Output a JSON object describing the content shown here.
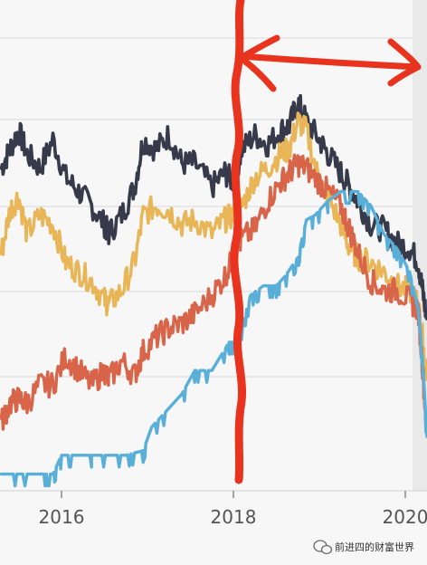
{
  "chart_data": {
    "type": "line",
    "title": "",
    "xlabel": "",
    "ylabel": "",
    "x_tick_labels": [
      "2016",
      "2018",
      "2020"
    ],
    "x_range": [
      2015.3,
      2020.25
    ],
    "y_range": [
      0,
      100
    ],
    "grid": "horizontal",
    "series": [
      {
        "color": "#363a4a",
        "points": [
          [
            2015.3,
            72
          ],
          [
            2015.4,
            76
          ],
          [
            2015.5,
            80
          ],
          [
            2015.6,
            75
          ],
          [
            2015.75,
            72
          ],
          [
            2015.9,
            78
          ],
          [
            2016.05,
            70
          ],
          [
            2016.2,
            67
          ],
          [
            2016.35,
            64
          ],
          [
            2016.5,
            60
          ],
          [
            2016.55,
            58
          ],
          [
            2016.7,
            62
          ],
          [
            2016.85,
            68
          ],
          [
            2016.95,
            78
          ],
          [
            2017.1,
            76
          ],
          [
            2017.25,
            79
          ],
          [
            2017.4,
            73
          ],
          [
            2017.55,
            73
          ],
          [
            2017.75,
            68
          ],
          [
            2017.9,
            71
          ],
          [
            2018.0,
            69
          ],
          [
            2018.1,
            76
          ],
          [
            2018.25,
            79
          ],
          [
            2018.4,
            77
          ],
          [
            2018.55,
            80
          ],
          [
            2018.65,
            81
          ],
          [
            2018.75,
            86
          ],
          [
            2018.85,
            82
          ],
          [
            2019.0,
            78
          ],
          [
            2019.1,
            75
          ],
          [
            2019.25,
            71
          ],
          [
            2019.35,
            68
          ],
          [
            2019.45,
            65
          ],
          [
            2019.6,
            60
          ],
          [
            2019.75,
            59
          ],
          [
            2019.9,
            56
          ],
          [
            2020.05,
            55
          ],
          [
            2020.15,
            52
          ],
          [
            2020.2,
            46
          ],
          [
            2020.25,
            40
          ]
        ]
      },
      {
        "color": "#e8b557",
        "points": [
          [
            2015.3,
            54
          ],
          [
            2015.4,
            63
          ],
          [
            2015.5,
            66
          ],
          [
            2015.6,
            58
          ],
          [
            2015.75,
            62
          ],
          [
            2015.9,
            60
          ],
          [
            2016.05,
            52
          ],
          [
            2016.2,
            50
          ],
          [
            2016.35,
            48
          ],
          [
            2016.5,
            44
          ],
          [
            2016.55,
            43
          ],
          [
            2016.7,
            46
          ],
          [
            2016.85,
            52
          ],
          [
            2016.95,
            62
          ],
          [
            2017.1,
            64
          ],
          [
            2017.25,
            63
          ],
          [
            2017.4,
            60
          ],
          [
            2017.55,
            61
          ],
          [
            2017.75,
            58
          ],
          [
            2017.9,
            61
          ],
          [
            2018.0,
            62
          ],
          [
            2018.1,
            64
          ],
          [
            2018.25,
            70
          ],
          [
            2018.4,
            72
          ],
          [
            2018.55,
            75
          ],
          [
            2018.65,
            76
          ],
          [
            2018.75,
            82
          ],
          [
            2018.85,
            80
          ],
          [
            2019.0,
            69
          ],
          [
            2019.1,
            66
          ],
          [
            2019.25,
            60
          ],
          [
            2019.35,
            55
          ],
          [
            2019.45,
            53
          ],
          [
            2019.6,
            52
          ],
          [
            2019.75,
            50
          ],
          [
            2019.9,
            47
          ],
          [
            2020.05,
            46
          ],
          [
            2020.15,
            43
          ],
          [
            2020.2,
            36
          ],
          [
            2020.25,
            28
          ]
        ]
      },
      {
        "color": "#d8654a",
        "points": [
          [
            2015.3,
            18
          ],
          [
            2015.4,
            22
          ],
          [
            2015.5,
            23
          ],
          [
            2015.6,
            22
          ],
          [
            2015.75,
            26
          ],
          [
            2015.9,
            26
          ],
          [
            2016.05,
            32
          ],
          [
            2016.2,
            29
          ],
          [
            2016.35,
            26
          ],
          [
            2016.5,
            29
          ],
          [
            2016.55,
            27
          ],
          [
            2016.7,
            31
          ],
          [
            2016.85,
            28
          ],
          [
            2016.95,
            33
          ],
          [
            2017.1,
            36
          ],
          [
            2017.25,
            38
          ],
          [
            2017.4,
            39
          ],
          [
            2017.55,
            41
          ],
          [
            2017.75,
            45
          ],
          [
            2017.9,
            49
          ],
          [
            2018.0,
            53
          ],
          [
            2018.1,
            57
          ],
          [
            2018.25,
            59
          ],
          [
            2018.4,
            65
          ],
          [
            2018.55,
            69
          ],
          [
            2018.65,
            71
          ],
          [
            2018.75,
            73
          ],
          [
            2018.85,
            72
          ],
          [
            2019.0,
            69
          ],
          [
            2019.1,
            67
          ],
          [
            2019.25,
            64
          ],
          [
            2019.35,
            59
          ],
          [
            2019.45,
            54
          ],
          [
            2019.6,
            48
          ],
          [
            2019.75,
            46
          ],
          [
            2019.9,
            46
          ],
          [
            2020.05,
            44
          ],
          [
            2020.15,
            42
          ],
          [
            2020.2,
            30
          ],
          [
            2020.25,
            16
          ]
        ]
      },
      {
        "color": "#5aafd9",
        "points": [
          [
            2015.3,
            7
          ],
          [
            2015.5,
            7
          ],
          [
            2015.75,
            7
          ],
          [
            2015.9,
            7
          ],
          [
            2016.0,
            11
          ],
          [
            2016.15,
            11
          ],
          [
            2016.35,
            11
          ],
          [
            2016.55,
            11
          ],
          [
            2016.75,
            11
          ],
          [
            2016.95,
            12
          ],
          [
            2017.05,
            17
          ],
          [
            2017.25,
            21
          ],
          [
            2017.4,
            24
          ],
          [
            2017.55,
            29
          ],
          [
            2017.75,
            29
          ],
          [
            2017.95,
            35
          ],
          [
            2018.05,
            35
          ],
          [
            2018.2,
            45
          ],
          [
            2018.35,
            47
          ],
          [
            2018.5,
            47
          ],
          [
            2018.6,
            49
          ],
          [
            2018.75,
            53
          ],
          [
            2018.85,
            61
          ],
          [
            2018.95,
            62
          ],
          [
            2019.1,
            65
          ],
          [
            2019.25,
            67
          ],
          [
            2019.45,
            67
          ],
          [
            2019.6,
            64
          ],
          [
            2019.75,
            58
          ],
          [
            2019.9,
            55
          ],
          [
            2020.05,
            50
          ],
          [
            2020.15,
            42
          ],
          [
            2020.2,
            32
          ],
          [
            2020.25,
            15
          ]
        ]
      }
    ]
  },
  "watermark": {
    "text": "前进四的财富世界",
    "icon": "wechat-icon"
  }
}
